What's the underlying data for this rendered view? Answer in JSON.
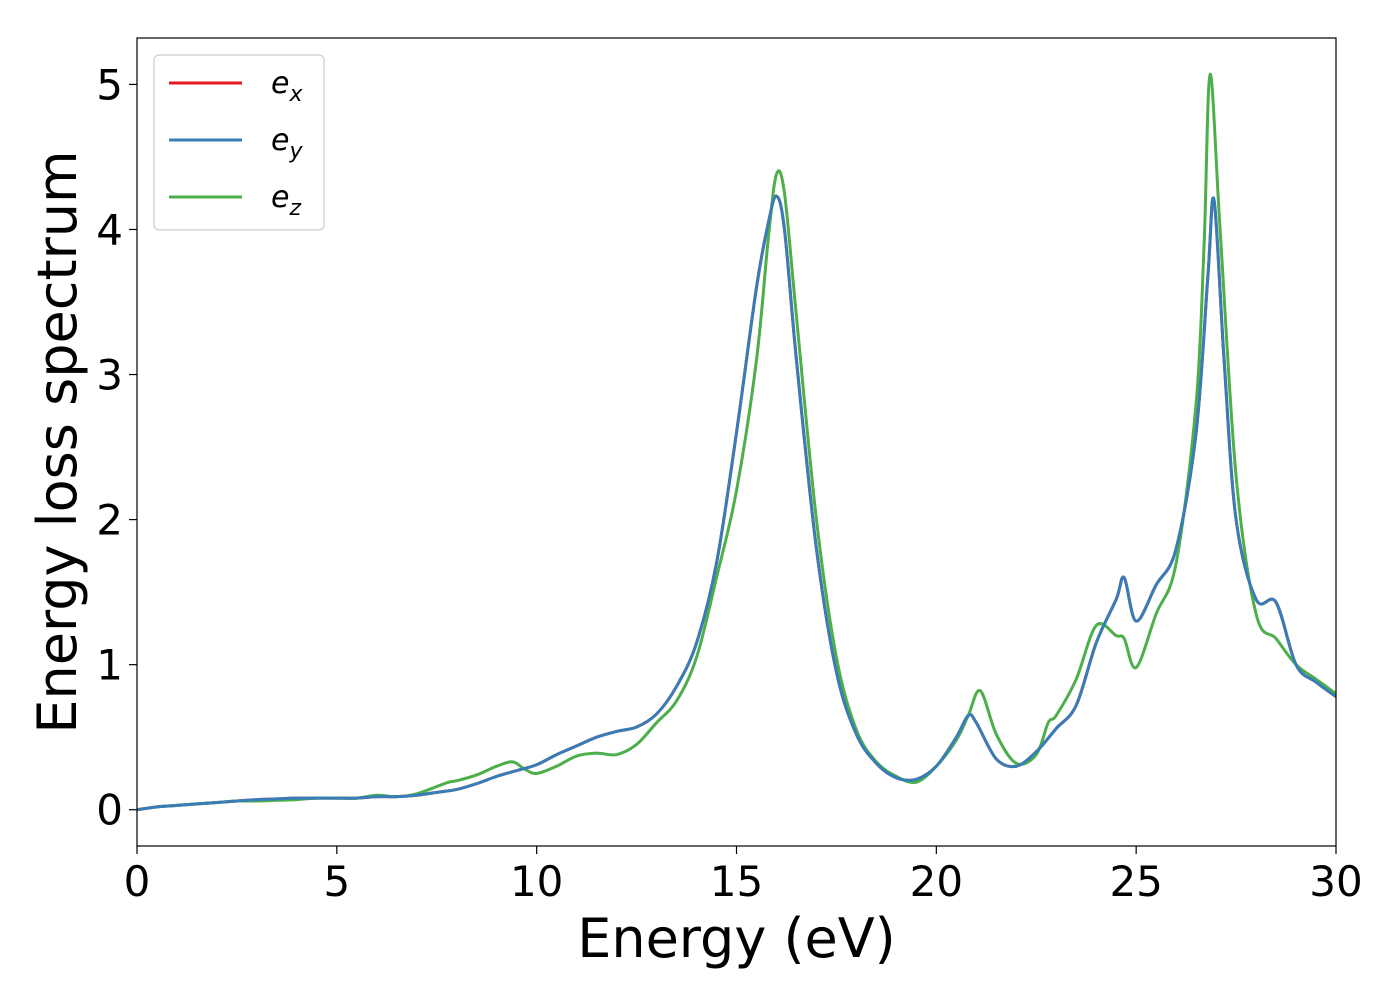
{
  "chart_data": {
    "type": "line",
    "title": "",
    "xlabel": "Energy (eV)",
    "ylabel": "Energy loss spectrum",
    "xlim": [
      0,
      30
    ],
    "ylim": [
      -0.25,
      5.32
    ],
    "xticks": [
      0,
      5,
      10,
      15,
      20,
      25,
      30
    ],
    "yticks": [
      0,
      1,
      2,
      3,
      4,
      5
    ],
    "grid": false,
    "legend_position": "upper-left",
    "series": [
      {
        "name": "e",
        "subscript": "x",
        "color": "#e41a1c",
        "x": [
          0,
          0.5,
          1,
          1.5,
          2,
          2.5,
          3,
          3.5,
          4,
          4.5,
          5,
          5.5,
          6,
          6.5,
          7,
          7.5,
          8,
          8.5,
          9,
          9.5,
          10,
          10.5,
          11,
          11.5,
          12,
          12.5,
          13,
          13.5,
          14,
          14.5,
          15,
          15.5,
          15.8,
          16,
          16.2,
          16.5,
          17,
          17.5,
          18,
          18.5,
          19,
          19.5,
          20,
          20.5,
          20.8,
          21,
          21.5,
          22,
          22.5,
          23,
          23.5,
          24,
          24.5,
          24.7,
          25,
          25.5,
          26,
          26.5,
          26.8,
          26.95,
          27.2,
          27.5,
          28,
          28.5,
          29,
          29.5,
          30
        ],
        "y": [
          0,
          0.02,
          0.03,
          0.04,
          0.05,
          0.06,
          0.07,
          0.075,
          0.08,
          0.08,
          0.08,
          0.08,
          0.09,
          0.09,
          0.1,
          0.12,
          0.14,
          0.18,
          0.23,
          0.27,
          0.31,
          0.38,
          0.44,
          0.5,
          0.54,
          0.57,
          0.66,
          0.85,
          1.15,
          1.7,
          2.6,
          3.6,
          4.05,
          4.23,
          4.0,
          3.1,
          1.8,
          0.95,
          0.52,
          0.32,
          0.22,
          0.21,
          0.3,
          0.5,
          0.65,
          0.6,
          0.35,
          0.3,
          0.4,
          0.56,
          0.72,
          1.15,
          1.45,
          1.6,
          1.3,
          1.55,
          1.8,
          2.6,
          3.7,
          4.2,
          3.1,
          2.0,
          1.45,
          1.43,
          1.0,
          0.88,
          0.78
        ]
      },
      {
        "name": "e",
        "subscript": "y",
        "color": "#377eb8",
        "x": [
          0,
          0.5,
          1,
          1.5,
          2,
          2.5,
          3,
          3.5,
          4,
          4.5,
          5,
          5.5,
          6,
          6.5,
          7,
          7.5,
          8,
          8.5,
          9,
          9.5,
          10,
          10.5,
          11,
          11.5,
          12,
          12.5,
          13,
          13.5,
          14,
          14.5,
          15,
          15.5,
          15.8,
          16,
          16.2,
          16.5,
          17,
          17.5,
          18,
          18.5,
          19,
          19.5,
          20,
          20.5,
          20.8,
          21,
          21.5,
          22,
          22.5,
          23,
          23.5,
          24,
          24.5,
          24.7,
          25,
          25.5,
          26,
          26.5,
          26.8,
          26.95,
          27.2,
          27.5,
          28,
          28.5,
          29,
          29.5,
          30
        ],
        "y": [
          0,
          0.02,
          0.03,
          0.04,
          0.05,
          0.06,
          0.07,
          0.075,
          0.08,
          0.08,
          0.08,
          0.08,
          0.09,
          0.09,
          0.1,
          0.12,
          0.14,
          0.18,
          0.23,
          0.27,
          0.31,
          0.38,
          0.44,
          0.5,
          0.54,
          0.57,
          0.66,
          0.85,
          1.15,
          1.7,
          2.6,
          3.6,
          4.05,
          4.23,
          4.0,
          3.1,
          1.8,
          0.95,
          0.52,
          0.32,
          0.22,
          0.21,
          0.3,
          0.5,
          0.65,
          0.6,
          0.35,
          0.3,
          0.4,
          0.56,
          0.72,
          1.15,
          1.45,
          1.6,
          1.3,
          1.55,
          1.8,
          2.6,
          3.7,
          4.2,
          3.1,
          2.0,
          1.45,
          1.43,
          1.0,
          0.88,
          0.78
        ]
      },
      {
        "name": "e",
        "subscript": "z",
        "color": "#4daf4a",
        "x": [
          0,
          0.5,
          1,
          1.5,
          2,
          2.5,
          3,
          3.5,
          4,
          4.5,
          5,
          5.5,
          6,
          6.5,
          7,
          7.5,
          7.8,
          8,
          8.5,
          9,
          9.4,
          9.7,
          10,
          10.5,
          11,
          11.5,
          12,
          12.5,
          13,
          13.5,
          14,
          14.5,
          15,
          15.5,
          15.8,
          16,
          16.2,
          16.5,
          17,
          17.5,
          18,
          18.5,
          19,
          19.5,
          20,
          20.5,
          20.8,
          21.1,
          21.5,
          22,
          22.5,
          22.8,
          23,
          23.5,
          24,
          24.5,
          24.7,
          25,
          25.5,
          26,
          26.5,
          26.7,
          26.85,
          27.1,
          27.5,
          28,
          28.5,
          29,
          29.5,
          30
        ],
        "y": [
          0,
          0.02,
          0.03,
          0.04,
          0.05,
          0.06,
          0.06,
          0.065,
          0.07,
          0.08,
          0.08,
          0.08,
          0.1,
          0.09,
          0.11,
          0.16,
          0.19,
          0.2,
          0.24,
          0.3,
          0.33,
          0.28,
          0.25,
          0.3,
          0.37,
          0.39,
          0.38,
          0.45,
          0.6,
          0.75,
          1.05,
          1.6,
          2.2,
          3.1,
          3.95,
          4.38,
          4.25,
          3.4,
          2.0,
          1.05,
          0.55,
          0.33,
          0.23,
          0.19,
          0.3,
          0.48,
          0.65,
          0.82,
          0.52,
          0.32,
          0.38,
          0.6,
          0.65,
          0.9,
          1.27,
          1.2,
          1.18,
          0.98,
          1.35,
          1.7,
          2.8,
          3.9,
          5.07,
          4.0,
          2.3,
          1.35,
          1.18,
          1.0,
          0.9,
          0.8
        ]
      }
    ]
  }
}
